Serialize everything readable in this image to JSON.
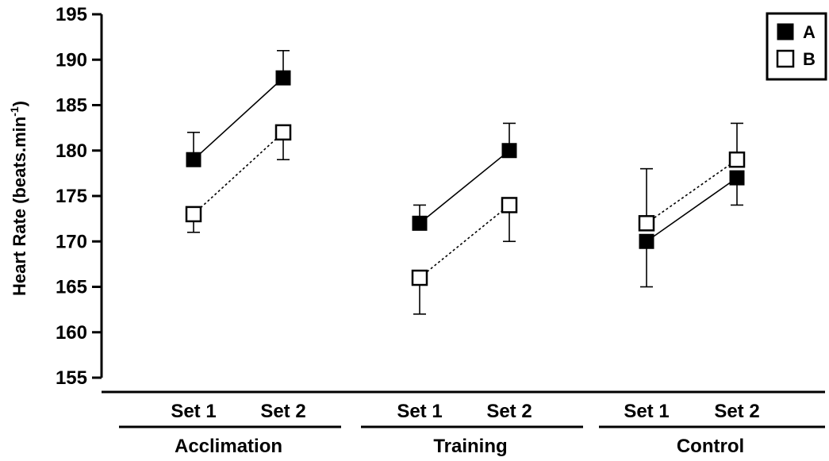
{
  "chart_data": {
    "type": "line",
    "ylabel": "Heart Rate (beats.min",
    "ylabel_superscript": "-1",
    "ylabel_close": ")",
    "ylim": [
      155,
      195
    ],
    "yticks": [
      155,
      160,
      165,
      170,
      175,
      180,
      185,
      190,
      195
    ],
    "groups": [
      {
        "label": "Acclimation",
        "sets": [
          "Set 1",
          "Set 2"
        ]
      },
      {
        "label": "Training",
        "sets": [
          "Set 1",
          "Set 2"
        ]
      },
      {
        "label": "Control",
        "sets": [
          "Set 1",
          "Set 2"
        ]
      }
    ],
    "series": [
      {
        "name": "A",
        "marker": "filled-square",
        "line": "solid",
        "values": [
          [
            179,
            188
          ],
          [
            172,
            180
          ],
          [
            170,
            177
          ]
        ],
        "error_high": [
          [
            182,
            191
          ],
          [
            174,
            183
          ],
          [
            null,
            null
          ]
        ],
        "error_low": [
          [
            null,
            null
          ],
          [
            null,
            null
          ],
          [
            165,
            174
          ]
        ]
      },
      {
        "name": "B",
        "marker": "open-square",
        "line": "dotted",
        "values": [
          [
            173,
            182
          ],
          [
            166,
            174
          ],
          [
            172,
            179
          ]
        ],
        "error_high": [
          [
            null,
            null
          ],
          [
            null,
            null
          ],
          [
            178,
            183
          ]
        ],
        "error_low": [
          [
            171,
            179
          ],
          [
            162,
            170
          ],
          [
            null,
            null
          ]
        ]
      }
    ],
    "grid": false,
    "legend_position": "top-right"
  }
}
